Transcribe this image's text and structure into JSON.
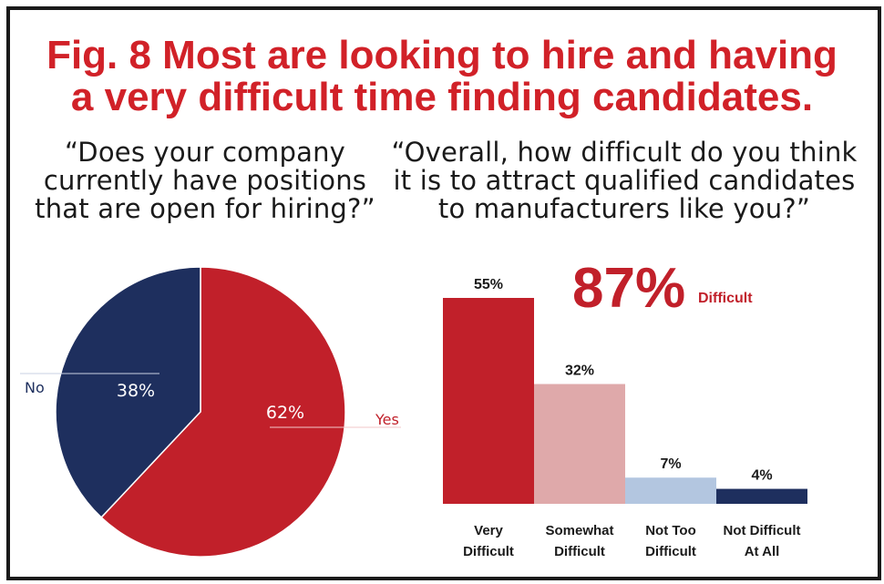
{
  "title_line1": "Fig. 8 Most are looking to hire and having",
  "title_line2": "a very difficult time finding candidates.",
  "question_left": [
    "“Does your company",
    "currently have positions",
    "that are open for hiring?”"
  ],
  "question_right": [
    "“Overall, how difficult do you think",
    "it is to attract qualified candidates",
    "to manufacturers like you?”"
  ],
  "callout": {
    "value": "87%",
    "label": "Difficult"
  },
  "colors": {
    "red": "#c1202a",
    "title_red": "#d12128",
    "navy": "#1e2f5e",
    "pink": "#dfa9aa",
    "light_blue": "#b3c6e0"
  },
  "chart_data": [
    {
      "type": "pie",
      "slices": [
        {
          "label": "Yes",
          "value": 62,
          "value_label": "62%",
          "color": "#c1202a"
        },
        {
          "label": "No",
          "value": 38,
          "value_label": "38%",
          "color": "#1e2f5e"
        }
      ]
    },
    {
      "type": "bar",
      "categories": [
        [
          "Very",
          "Difficult"
        ],
        [
          "Somewhat",
          "Difficult"
        ],
        [
          "Not Too",
          "Difficult"
        ],
        [
          "Not Difficult",
          "At All"
        ]
      ],
      "values": [
        55,
        32,
        7,
        4
      ],
      "value_labels": [
        "55%",
        "32%",
        "7%",
        "4%"
      ],
      "colors": [
        "#c1202a",
        "#dfa9aa",
        "#b3c6e0",
        "#1e2f5e"
      ],
      "ylim": [
        0,
        55
      ]
    }
  ]
}
